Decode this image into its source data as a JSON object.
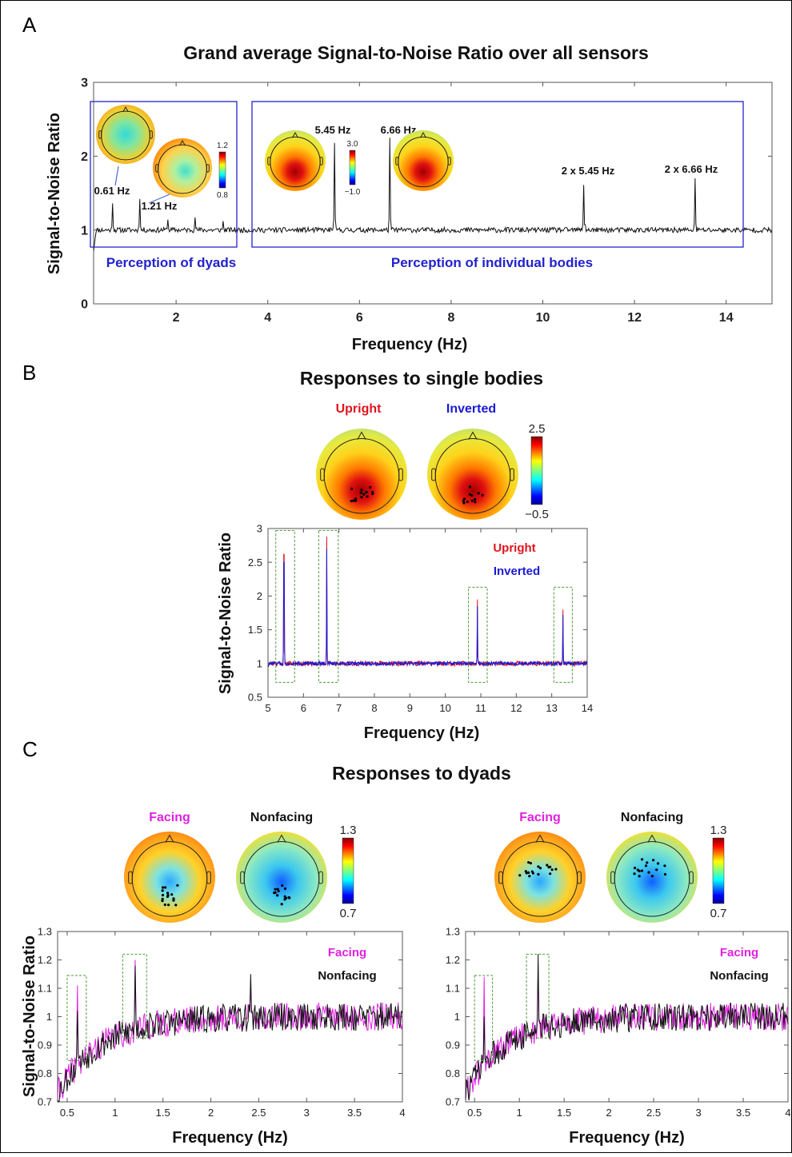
{
  "panels": {
    "a": "A",
    "b": "B",
    "c": "C"
  },
  "colors": {
    "upright": "#e0141e",
    "inverted": "#1a1ad6",
    "facing": "#e020e0",
    "nonfacing": "#111111",
    "box_blue": "#2222cc",
    "box_green": "#4c9a3a"
  },
  "chart_data": [
    {
      "id": "A",
      "type": "line",
      "title": "Grand average Signal-to-Noise Ratio over all sensors",
      "xlabel": "Frequency (Hz)",
      "ylabel": "Signal-to-Noise Ratio",
      "xlim": [
        0.2,
        15
      ],
      "ylim": [
        0,
        3
      ],
      "xticks": [
        2,
        4,
        6,
        8,
        10,
        12,
        14
      ],
      "yticks": [
        0,
        1,
        2,
        3
      ],
      "series": [
        {
          "baseline": 1.0,
          "noise": 0.035,
          "start": 0.72,
          "peaks": [
            {
              "x": 0.61,
              "y": 1.36
            },
            {
              "x": 1.21,
              "y": 1.42
            },
            {
              "x": 1.82,
              "y": 1.14
            },
            {
              "x": 2.42,
              "y": 1.17
            },
            {
              "x": 3.03,
              "y": 1.12
            },
            {
              "x": 5.45,
              "y": 2.18
            },
            {
              "x": 6.66,
              "y": 2.25
            },
            {
              "x": 10.9,
              "y": 1.61
            },
            {
              "x": 13.32,
              "y": 1.7
            }
          ]
        }
      ],
      "annotations": [
        "0.61 Hz",
        "1.21 Hz",
        "5.45 Hz",
        "6.66 Hz",
        "2 x 5.45 Hz",
        "2 x 6.66 Hz"
      ],
      "regions": [
        "Perception of dyads",
        "Perception of individual bodies"
      ],
      "colorbars": [
        {
          "max": "1.2",
          "min": "0.8"
        },
        {
          "max": "3.0",
          "min": "−1.0"
        }
      ]
    },
    {
      "id": "B",
      "type": "line",
      "title": "Responses to single bodies",
      "xlabel": "Frequency (Hz)",
      "ylabel": "Signal-to-Noise Ratio",
      "xlim": [
        5,
        14
      ],
      "ylim": [
        0.5,
        3
      ],
      "xticks": [
        5,
        6,
        7,
        8,
        9,
        10,
        11,
        12,
        13,
        14
      ],
      "yticks": [
        0.5,
        1,
        1.5,
        2,
        2.5,
        3
      ],
      "series": [
        {
          "name": "Upright",
          "baseline": 1.0,
          "noise": 0.035,
          "start": 0.95,
          "peaks": [
            {
              "x": 5.45,
              "y": 2.62
            },
            {
              "x": 6.66,
              "y": 2.88
            },
            {
              "x": 10.9,
              "y": 1.95
            },
            {
              "x": 13.32,
              "y": 1.8
            }
          ]
        },
        {
          "name": "Inverted",
          "baseline": 1.0,
          "noise": 0.03,
          "start": 0.95,
          "peaks": [
            {
              "x": 5.45,
              "y": 2.5
            },
            {
              "x": 6.66,
              "y": 2.7
            },
            {
              "x": 10.9,
              "y": 1.85
            },
            {
              "x": 13.32,
              "y": 1.72
            }
          ]
        }
      ],
      "topomap_labels": [
        "Upright",
        "Inverted"
      ],
      "colorbar": {
        "max": "2.5",
        "min": "−0.5"
      }
    },
    {
      "id": "C-left",
      "type": "line",
      "title": "Responses to dyads",
      "xlabel": "Frequency (Hz)",
      "ylabel": "Signal-to-Noise Ratio",
      "xlim": [
        0.4,
        4
      ],
      "ylim": [
        0.7,
        1.3
      ],
      "xticks": [
        0.5,
        1,
        1.5,
        2,
        2.5,
        3,
        3.5,
        4
      ],
      "yticks": [
        0.7,
        0.8,
        0.9,
        1,
        1.1,
        1.2,
        1.3
      ],
      "series": [
        {
          "name": "Facing",
          "peaks": [
            {
              "x": 0.61,
              "y": 1.11
            },
            {
              "x": 1.21,
              "y": 1.2
            },
            {
              "x": 2.42,
              "y": 1.1
            }
          ]
        },
        {
          "name": "Nonfacing",
          "peaks": [
            {
              "x": 0.61,
              "y": 1.02
            },
            {
              "x": 1.21,
              "y": 1.18
            },
            {
              "x": 2.42,
              "y": 1.15
            }
          ]
        }
      ],
      "topomap_labels": [
        "Facing",
        "Nonfacing"
      ],
      "colorbar": {
        "max": "1.3",
        "min": "0.7"
      }
    },
    {
      "id": "C-right",
      "type": "line",
      "xlabel": "Frequency (Hz)",
      "xlim": [
        0.4,
        4
      ],
      "ylim": [
        0.7,
        1.3
      ],
      "xticks": [
        0.5,
        1,
        1.5,
        2,
        2.5,
        3,
        3.5,
        4
      ],
      "yticks": [
        0.7,
        0.8,
        0.9,
        1,
        1.1,
        1.2,
        1.3
      ],
      "series": [
        {
          "name": "Facing",
          "peaks": [
            {
              "x": 0.61,
              "y": 1.14
            },
            {
              "x": 1.21,
              "y": 1.17
            }
          ]
        },
        {
          "name": "Nonfacing",
          "peaks": [
            {
              "x": 0.61,
              "y": 1.0
            },
            {
              "x": 1.21,
              "y": 1.22
            }
          ]
        }
      ],
      "topomap_labels": [
        "Facing",
        "Nonfacing"
      ],
      "colorbar": {
        "max": "1.3",
        "min": "0.7"
      }
    }
  ]
}
